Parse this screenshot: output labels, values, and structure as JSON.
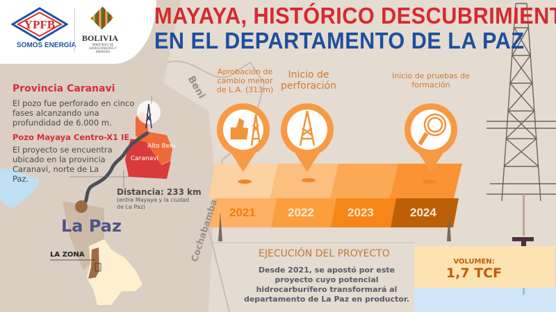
{
  "header": {
    "logo_text": "YPFB",
    "slogan": "SOMOS ENERGÍA",
    "gov_logo_text": "BOLIVIA",
    "gov_ministry": "MINISTERIO DE HIDROCARBUROS Y ENERGÍAS",
    "title_line1": "MAYAYA, HISTÓRICO DESCUBRIMIENTO",
    "title_line2": "EN EL DEPARTAMENTO DE LA PAZ"
  },
  "info": {
    "province_title": "Provincia Caranavi",
    "province_text": "El pozo fue perforado en cinco fases alcanzando una profundidad de 6.000 m.",
    "well_title": "Pozo Mayaya Centro-X1 IE",
    "well_text": "El proyecto se encuentra ubicado en la provincia Caranavi, norte de La Paz.",
    "distance_label": "Distancia: 233 km",
    "distance_note": "(entre Mayaya y la ciudad de La Paz)"
  },
  "map": {
    "region_alto_beni": "Alto Beni",
    "region_caranavi": "Caranavi",
    "dept_beni": "Beni",
    "dept_cochabamba": "Cochabamba",
    "dept_la_paz": "La Paz",
    "zone_label": "LA ZONA"
  },
  "timeline": {
    "milestones": [
      {
        "label": "Aprobación de cambio menor de L.A. (313m)",
        "icon": "thumbs-up-rig-icon"
      },
      {
        "label": "Inicio de perforación",
        "icon": "drilling-rig-icon"
      },
      {
        "label": "Inicio de pruebas de formación",
        "icon": "magnifier-icon"
      }
    ],
    "years": [
      "2021",
      "2022",
      "2023",
      "2024"
    ],
    "colors": {
      "2021": "#fcb166",
      "2022": "#fb9f3e",
      "2023": "#f7861a",
      "2024": "#bd5f06"
    }
  },
  "execution": {
    "title": "EJECUCIÓN DEL PROYECTO",
    "text": "Desde 2021, se apostó por este proyecto cuyo potencial hidrocarburífero transformará al departamento de La Paz en productor."
  },
  "volume": {
    "label": "VOLUMEN:",
    "value": "1,7 TCF"
  }
}
